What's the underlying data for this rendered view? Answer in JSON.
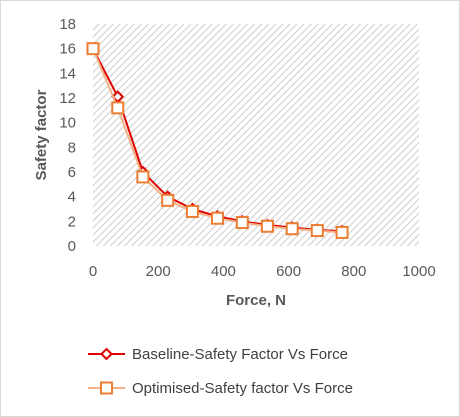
{
  "chart_data": {
    "type": "line",
    "title": "",
    "xlabel": "Force, N",
    "ylabel": "Safety factor",
    "xlim": [
      0,
      1000
    ],
    "ylim": [
      0,
      18
    ],
    "x_ticks": [
      0,
      200,
      400,
      600,
      800,
      1000
    ],
    "y_ticks": [
      0,
      2,
      4,
      6,
      8,
      10,
      12,
      14,
      16,
      18
    ],
    "grid": "hatched",
    "legend_position": "bottom",
    "series": [
      {
        "name": "Baseline-Safety Factor Vs Force",
        "color": "#e00000",
        "marker": "diamond",
        "x": [
          0,
          76,
          153,
          229,
          305,
          382,
          458,
          535,
          611,
          688,
          764
        ],
        "y": [
          16.0,
          12.1,
          6.0,
          4.0,
          3.0,
          2.4,
          2.0,
          1.7,
          1.5,
          1.3,
          1.2
        ]
      },
      {
        "name": "Optimised-Safety factor Vs Force",
        "color": "#f4b183",
        "marker_color": "#ed7d31",
        "marker": "square",
        "x": [
          0,
          76,
          153,
          229,
          305,
          382,
          458,
          535,
          611,
          688,
          764
        ],
        "y": [
          16.0,
          11.2,
          5.6,
          3.7,
          2.8,
          2.25,
          1.9,
          1.6,
          1.4,
          1.25,
          1.1
        ]
      }
    ]
  }
}
